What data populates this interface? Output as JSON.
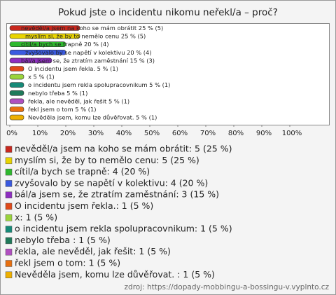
{
  "chart_data": {
    "type": "barh",
    "title": "Pokud jste o incidentu nikomu neřekl/a – proč?",
    "categories": [
      "nevěděl/a jsem na koho se mám obrátit",
      "myslím si, že by to nemělo cenu",
      "cítil/a bych se trapně",
      "zvyšovalo by se napětí v kolektivu",
      "bál/a jsem se, že ztratím zaměstnání",
      "O incidentu jsem řekla.",
      "x",
      "o incidentu jsem rekla spolupracovnikum",
      "nebylo třeba",
      "řekla, ale nevěděl, jak řešit",
      "řekl jsem o tom",
      "Nevěděla jsem, komu lze důvěřovat."
    ],
    "values": [
      25,
      25,
      20,
      20,
      15,
      5,
      5,
      5,
      5,
      5,
      5,
      5
    ],
    "bar_labels": [
      "nevěděl/a jsem na koho se mám obrátit 25 % (5)",
      "myslím si, že by to nemělo cenu 25 % (5)",
      "cítil/a bych se trapně 20 % (4)",
      "zvyšovalo by se napětí v kolektivu 20 % (4)",
      "bál/a jsem se, že ztratím zaměstnání 15 % (3)",
      "O incidentu jsem řekla. 5 % (1)",
      "x 5 % (1)",
      "o incidentu jsem rekla spolupracovnikum 5 % (1)",
      "nebylo třeba  5 % (1)",
      "řekla, ale nevěděl, jak řešit 5 % (1)",
      "řekl jsem o tom 5 % (1)",
      "Nevěděla jsem, komu lze důvěřovat.  5 % (1)"
    ],
    "legend_labels": [
      "nevěděl/a jsem na koho se mám obrátit: 5 (25 %)",
      "myslím si, že by to nemělo cenu: 5 (25 %)",
      "cítil/a bych se trapně: 4 (20 %)",
      "zvyšovalo by se napětí v kolektivu: 4 (20 %)",
      "bál/a jsem se, že ztratím zaměstnání: 3 (15 %)",
      "O incidentu jsem řekla.: 1 (5 %)",
      "x: 1 (5 %)",
      "o incidentu jsem rekla spolupracovnikum: 1 (5 %)",
      "nebylo třeba : 1 (5 %)",
      "řekla, ale nevěděl, jak řešit: 1 (5 %)",
      "řekl jsem o tom: 1 (5 %)",
      "Nevěděla jsem, komu lze důvěřovat. : 1 (5 %)"
    ],
    "colors": [
      "#c8281e",
      "#e8d400",
      "#2eb82e",
      "#3a5ae0",
      "#8e2fc0",
      "#e04a1a",
      "#9ad43c",
      "#168a78",
      "#1f7a5a",
      "#b04fc0",
      "#e87010",
      "#eeb000"
    ],
    "xlim": [
      0,
      100
    ],
    "xticks": [
      {
        "value": 0,
        "label": "0%"
      },
      {
        "value": 10,
        "label": "10%"
      },
      {
        "value": 20,
        "label": "20%"
      },
      {
        "value": 30,
        "label": "30%"
      },
      {
        "value": 40,
        "label": "40%"
      },
      {
        "value": 50,
        "label": "50%"
      },
      {
        "value": 60,
        "label": "60%"
      },
      {
        "value": 70,
        "label": "70%"
      },
      {
        "value": 80,
        "label": "80%"
      },
      {
        "value": 90,
        "label": "90%"
      },
      {
        "value": 100,
        "label": "100%"
      }
    ],
    "source": "zdroj: https://dopady-mobbingu-a-bossingu-v.vyplnto.cz"
  }
}
